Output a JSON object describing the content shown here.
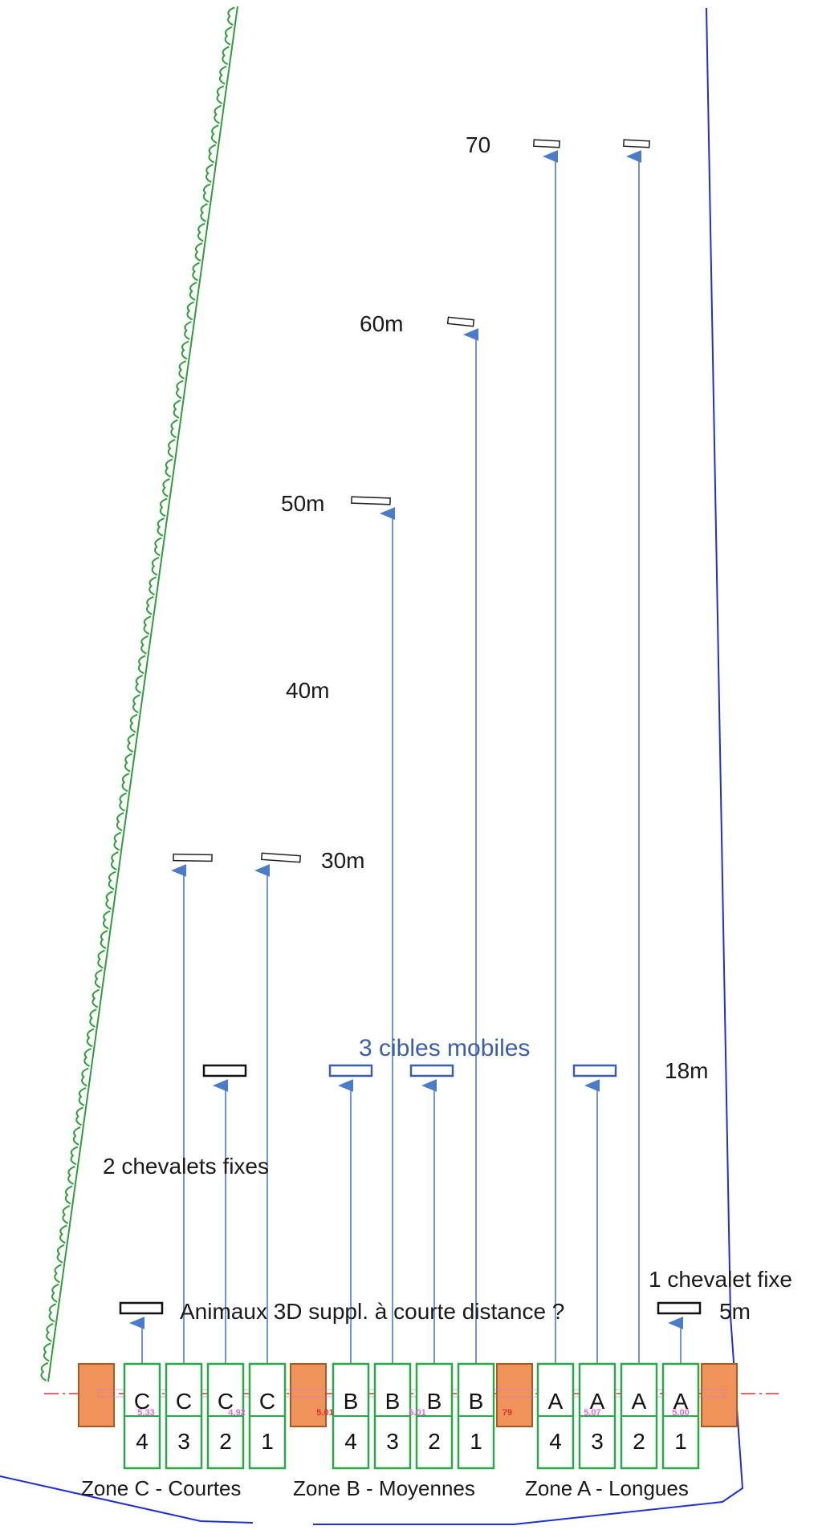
{
  "distances": {
    "d70": "70",
    "d60": "60m",
    "d50": "50m",
    "d40": "40m",
    "d30": "30m",
    "d18": "18m",
    "d5": "5m"
  },
  "notes": {
    "mobile_targets": "3 cibles mobiles",
    "two_fixed": "2 chevalets fixes",
    "one_fixed": "1 chevalet fixe",
    "animals_3d": "Animaux 3D suppl. à courte distance ?"
  },
  "zones": {
    "c": "Zone C - Courtes",
    "b": "Zone B - Moyennes",
    "a": "Zone A - Longues"
  },
  "lanes": [
    {
      "letter": "C",
      "number": "4"
    },
    {
      "letter": "C",
      "number": "3"
    },
    {
      "letter": "C",
      "number": "2"
    },
    {
      "letter": "C",
      "number": "1"
    },
    {
      "letter": "B",
      "number": "4"
    },
    {
      "letter": "B",
      "number": "3"
    },
    {
      "letter": "B",
      "number": "2"
    },
    {
      "letter": "B",
      "number": "1"
    },
    {
      "letter": "A",
      "number": "4"
    },
    {
      "letter": "A",
      "number": "3"
    },
    {
      "letter": "A",
      "number": "2"
    },
    {
      "letter": "A",
      "number": "1"
    }
  ],
  "dimensions": [
    "5.33",
    "4.92",
    "5.01",
    "5.01",
    "79",
    "5.07",
    "5.00"
  ],
  "colors": {
    "hedge": "#2e9e3a",
    "boundary": "#1f2fd6",
    "lane_border": "#2aa84a",
    "arrow": "#4a7cc9",
    "mobile_target": "#3a5fa8",
    "block": "#f0935a",
    "block_border": "#a85a20",
    "axis": "#e03030"
  }
}
